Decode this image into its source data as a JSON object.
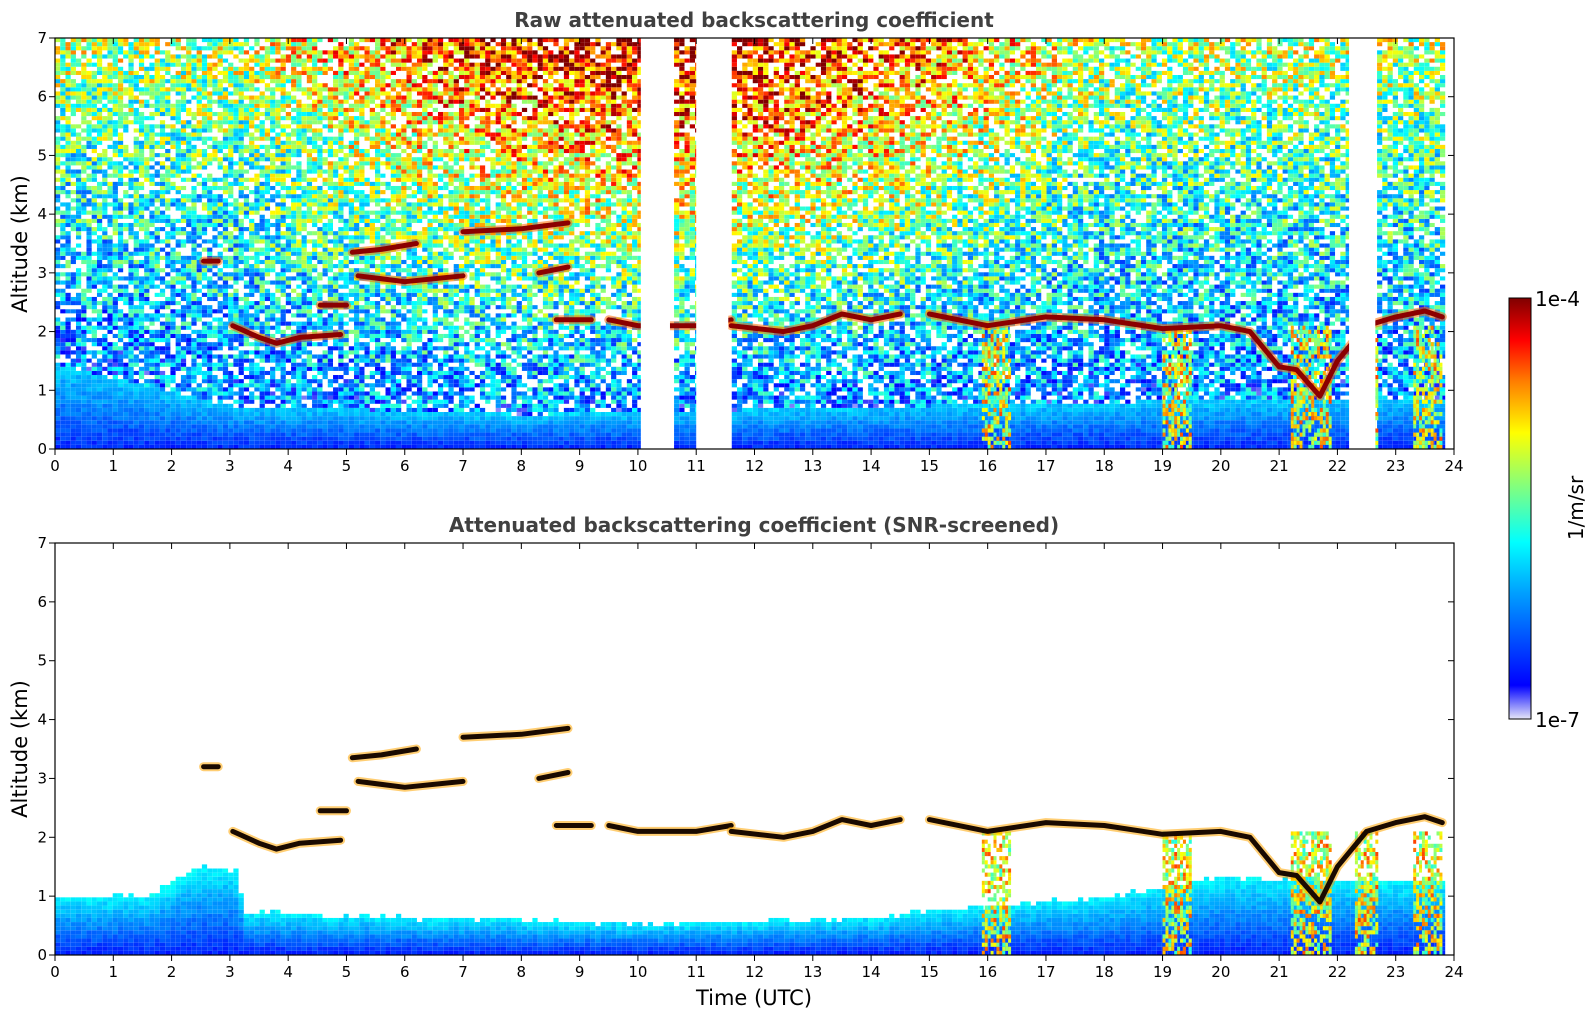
{
  "chart_data": [
    {
      "type": "heatmap",
      "title": "Raw attenuated backscattering coefficient",
      "xlabel": "",
      "ylabel": "Altitude (km)",
      "xlim": [
        0,
        24
      ],
      "ylim": [
        0,
        7
      ],
      "x_ticks": [
        0,
        1,
        2,
        3,
        4,
        5,
        6,
        7,
        8,
        9,
        10,
        11,
        12,
        13,
        14,
        15,
        16,
        17,
        18,
        19,
        20,
        21,
        22,
        23,
        24
      ],
      "y_ticks": [
        0,
        1,
        2,
        3,
        4,
        5,
        6,
        7
      ],
      "data_gaps_utc": [
        [
          10.05,
          10.55
        ],
        [
          11.0,
          11.55
        ],
        [
          22.2,
          22.65
        ]
      ],
      "layers": [
        {
          "x": [
            3.05,
            3.5,
            3.8,
            4.2,
            4.9
          ],
          "y": [
            2.1,
            1.9,
            1.8,
            1.9,
            1.95
          ]
        },
        {
          "x": [
            2.55,
            2.8
          ],
          "y": [
            3.2,
            3.2
          ]
        },
        {
          "x": [
            4.55,
            5.0
          ],
          "y": [
            2.45,
            2.45
          ]
        },
        {
          "x": [
            5.1,
            5.6,
            6.2
          ],
          "y": [
            3.35,
            3.4,
            3.5
          ]
        },
        {
          "x": [
            5.2,
            6.0,
            7.0
          ],
          "y": [
            2.95,
            2.85,
            2.95
          ]
        },
        {
          "x": [
            7.0,
            8.0,
            8.8
          ],
          "y": [
            3.7,
            3.75,
            3.85
          ]
        },
        {
          "x": [
            8.3,
            8.8
          ],
          "y": [
            3.0,
            3.1
          ]
        },
        {
          "x": [
            8.6,
            9.2
          ],
          "y": [
            2.2,
            2.2
          ]
        },
        {
          "x": [
            9.5,
            10.0,
            11.0,
            11.6
          ],
          "y": [
            2.2,
            2.1,
            2.1,
            2.2
          ]
        },
        {
          "x": [
            11.6,
            12.5,
            13.0,
            13.5,
            14.0,
            14.5
          ],
          "y": [
            2.1,
            2.0,
            2.1,
            2.3,
            2.2,
            2.3
          ]
        },
        {
          "x": [
            15.0,
            16.0,
            17.0,
            18.0,
            19.0,
            20.0,
            20.5,
            21.0,
            21.3,
            21.7,
            22.0,
            22.5,
            23.0,
            23.5,
            23.8
          ],
          "y": [
            2.3,
            2.1,
            2.25,
            2.2,
            2.05,
            2.1,
            2.0,
            1.4,
            1.35,
            0.9,
            1.5,
            2.1,
            2.25,
            2.35,
            2.25
          ]
        }
      ],
      "boundary_layer_top_km": [
        [
          0,
          1.4
        ],
        [
          3,
          0.7
        ],
        [
          8,
          0.55
        ],
        [
          15,
          0.7
        ],
        [
          20,
          0.8
        ],
        [
          24,
          0.8
        ]
      ],
      "precipitation_fall_streaks_utc": [
        [
          15.9,
          16.4
        ],
        [
          19.0,
          19.5
        ],
        [
          21.2,
          21.9
        ],
        [
          22.3,
          22.7
        ],
        [
          23.3,
          23.8
        ]
      ]
    },
    {
      "type": "heatmap",
      "title": "Attenuated backscattering coefficient (SNR-screened)",
      "xlabel": "Time (UTC)",
      "ylabel": "Altitude (km)",
      "xlim": [
        0,
        24
      ],
      "ylim": [
        0,
        7
      ],
      "x_ticks": [
        0,
        1,
        2,
        3,
        4,
        5,
        6,
        7,
        8,
        9,
        10,
        11,
        12,
        13,
        14,
        15,
        16,
        17,
        18,
        19,
        20,
        21,
        22,
        23,
        24
      ],
      "y_ticks": [
        0,
        1,
        2,
        3,
        4,
        5,
        6,
        7
      ],
      "aerosol_top_km": [
        [
          0,
          0.95
        ],
        [
          1.5,
          0.95
        ],
        [
          2.5,
          1.5
        ],
        [
          3.1,
          1.4
        ],
        [
          3.2,
          0.7
        ],
        [
          6,
          0.6
        ],
        [
          10,
          0.5
        ],
        [
          14,
          0.6
        ],
        [
          16,
          0.8
        ],
        [
          18,
          0.95
        ],
        [
          20,
          1.3
        ],
        [
          24,
          1.2
        ]
      ]
    }
  ],
  "colorbar": {
    "label": "1/m/sr",
    "max_label": "1e-4",
    "min_label": "1e-7",
    "colormap": "jet",
    "colors": [
      "#e6e6f8",
      "#0000ff",
      "#00a0ff",
      "#00ffff",
      "#80ff80",
      "#ffff00",
      "#ff8000",
      "#ff0000",
      "#800000"
    ]
  }
}
